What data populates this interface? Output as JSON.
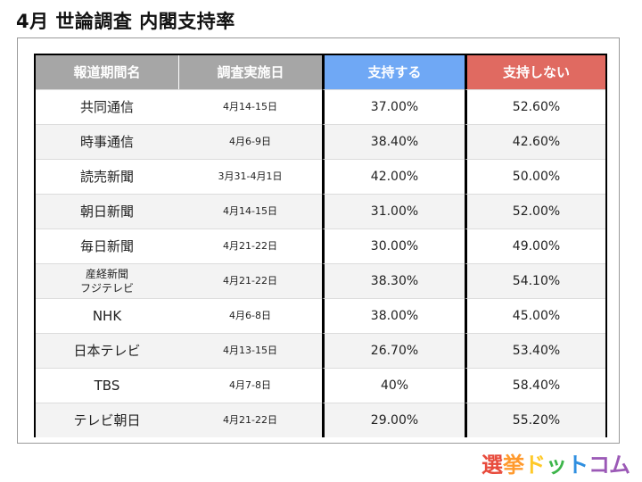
{
  "title": "4月 世論調査 内閣支持率",
  "table": {
    "headers": [
      "報道期間名",
      "調査実施日",
      "支持する",
      "支持しない"
    ],
    "header_colors": {
      "gray": "#a6a6a6",
      "blue": "#6fa8f5",
      "red": "#e06a61"
    },
    "rows": [
      {
        "name": "共同通信",
        "date": "4月14-15日",
        "support": "37.00%",
        "oppose": "52.60%"
      },
      {
        "name": "時事通信",
        "date": "4月6-9日",
        "support": "38.40%",
        "oppose": "42.60%"
      },
      {
        "name": "読売新聞",
        "date": "3月31-4月1日",
        "support": "42.00%",
        "oppose": "50.00%"
      },
      {
        "name": "朝日新聞",
        "date": "4月14-15日",
        "support": "31.00%",
        "oppose": "52.00%"
      },
      {
        "name": "毎日新聞",
        "date": "4月21-22日",
        "support": "30.00%",
        "oppose": "49.00%"
      },
      {
        "name_line1": "産経新聞",
        "name_line2": "フジテレビ",
        "date": "4月21-22日",
        "support": "38.30%",
        "oppose": "54.10%"
      },
      {
        "name": "NHK",
        "date": "4月6-8日",
        "support": "38.00%",
        "oppose": "45.00%"
      },
      {
        "name": "日本テレビ",
        "date": "4月13-15日",
        "support": "26.70%",
        "oppose": "53.40%"
      },
      {
        "name": "TBS",
        "date": "4月7-8日",
        "support": "40%",
        "oppose": "58.40%"
      },
      {
        "name": "テレビ朝日",
        "date": "4月21-22日",
        "support": "29.00%",
        "oppose": "55.20%"
      }
    ]
  },
  "logo": {
    "c1": "選",
    "c2": "挙",
    "c3": "ド",
    "c4": "ッ",
    "c5": "ト",
    "c6": "コム"
  }
}
